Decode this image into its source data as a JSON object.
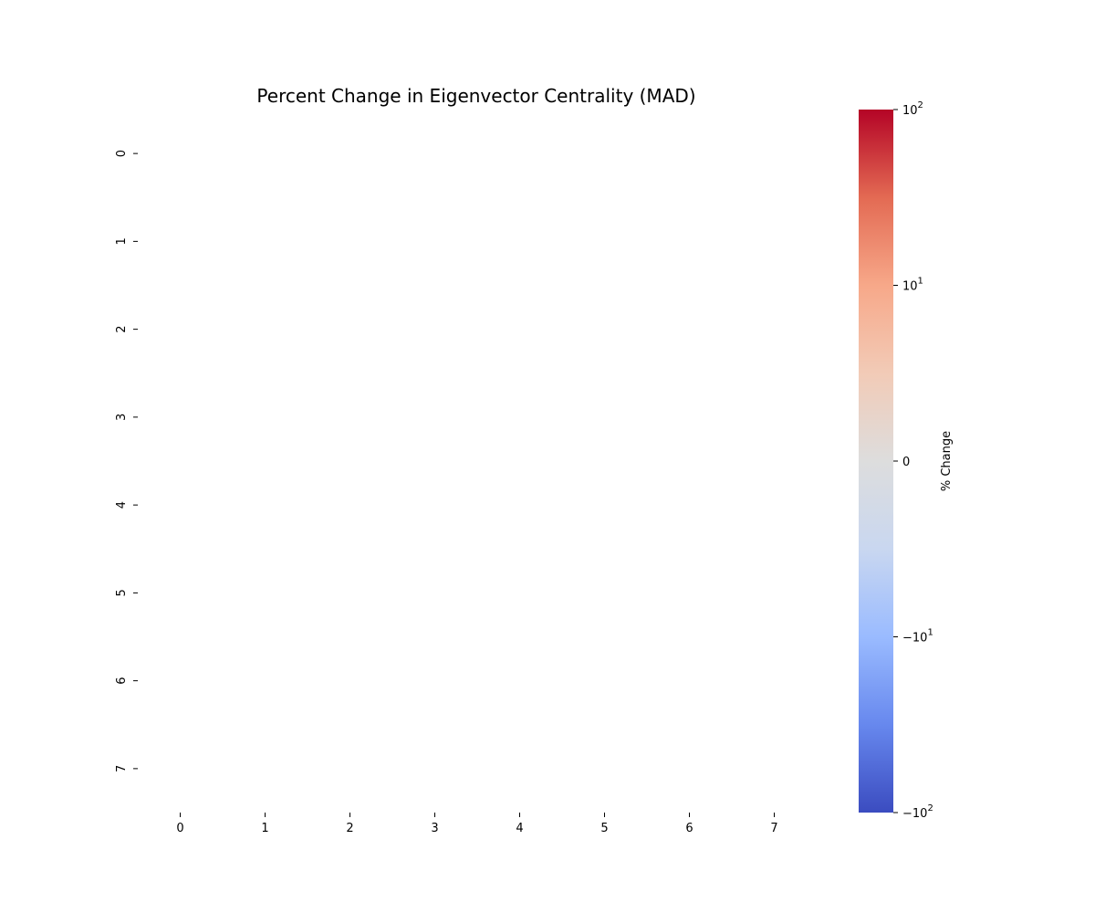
{
  "chart_data": {
    "type": "heatmap",
    "title": "Percent Change in Eigenvector Centrality (MAD)",
    "x_tick_labels": [
      "0",
      "1",
      "2",
      "3",
      "4",
      "5",
      "6",
      "7"
    ],
    "y_tick_labels": [
      "0",
      "1",
      "2",
      "3",
      "4",
      "5",
      "6",
      "7"
    ],
    "values": [],
    "grid": false,
    "colorbar": {
      "label": "% Change",
      "colormap": "coolwarm",
      "scale": "symlog",
      "range": [
        -100,
        100
      ],
      "ticks": [
        {
          "value": 100,
          "base": "10",
          "exp": "2",
          "sign": ""
        },
        {
          "value": 10,
          "base": "10",
          "exp": "1",
          "sign": ""
        },
        {
          "value": 0,
          "base": "0",
          "exp": "",
          "sign": ""
        },
        {
          "value": -10,
          "base": "10",
          "exp": "1",
          "sign": "−"
        },
        {
          "value": -100,
          "base": "10",
          "exp": "2",
          "sign": "−"
        }
      ],
      "colors": [
        "#3b4cc0",
        "#6788ee",
        "#9abbff",
        "#c9d7f0",
        "#dddddd",
        "#f2cbb7",
        "#f7a889",
        "#e36a53",
        "#b40426"
      ]
    }
  }
}
